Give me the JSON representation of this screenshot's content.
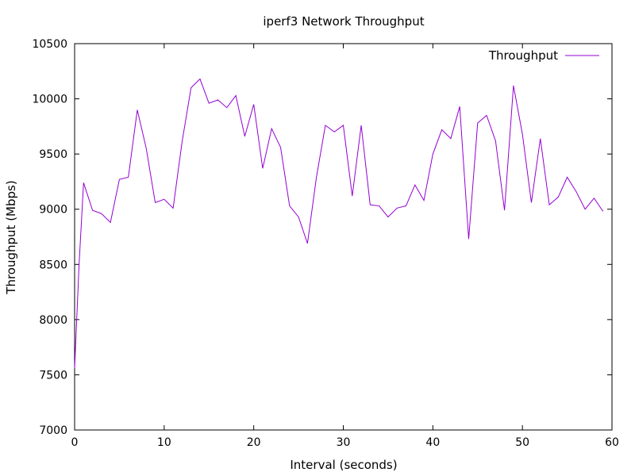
{
  "chart_data": {
    "type": "line",
    "title": "iperf3 Network Throughput",
    "xlabel": "Interval (seconds)",
    "ylabel": "Throughput (Mbps)",
    "xlim": [
      0,
      60
    ],
    "ylim": [
      7000,
      10500
    ],
    "xticks": [
      "0",
      "10",
      "20",
      "30",
      "40",
      "50",
      "60"
    ],
    "yticks": [
      "7000",
      "7500",
      "8000",
      "8500",
      "9000",
      "9500",
      "10000",
      "10500"
    ],
    "grid": false,
    "legend": "top-right",
    "series": [
      {
        "name": "Throughput",
        "color": "#9400d3",
        "x": [
          0,
          0.5,
          1,
          2,
          3,
          4,
          5,
          6,
          7,
          8,
          9,
          10,
          11,
          12,
          13,
          14,
          15,
          16,
          17,
          18,
          19,
          20,
          21,
          22,
          23,
          24,
          25,
          26,
          27,
          28,
          29,
          30,
          31,
          32,
          33,
          34,
          35,
          36,
          37,
          38,
          39,
          40,
          41,
          42,
          43,
          44,
          45,
          46,
          47,
          48,
          49,
          50,
          51,
          52,
          53,
          54,
          55,
          56,
          57,
          58,
          59
        ],
        "y": [
          7560,
          8500,
          9240,
          8990,
          8960,
          8880,
          9270,
          9290,
          9900,
          9550,
          9060,
          9090,
          9010,
          9610,
          10100,
          10180,
          9960,
          9990,
          9920,
          10030,
          9660,
          9950,
          9370,
          9730,
          9560,
          9030,
          8930,
          8690,
          9290,
          9760,
          9700,
          9760,
          9120,
          9760,
          9040,
          9030,
          8930,
          9010,
          9030,
          9220,
          9080,
          9500,
          9720,
          9640,
          9930,
          8730,
          9780,
          9850,
          9620,
          8990,
          10120,
          9680,
          9060,
          9640,
          9040,
          9110,
          9290,
          9160,
          9000,
          9100,
          8980
        ]
      }
    ]
  }
}
